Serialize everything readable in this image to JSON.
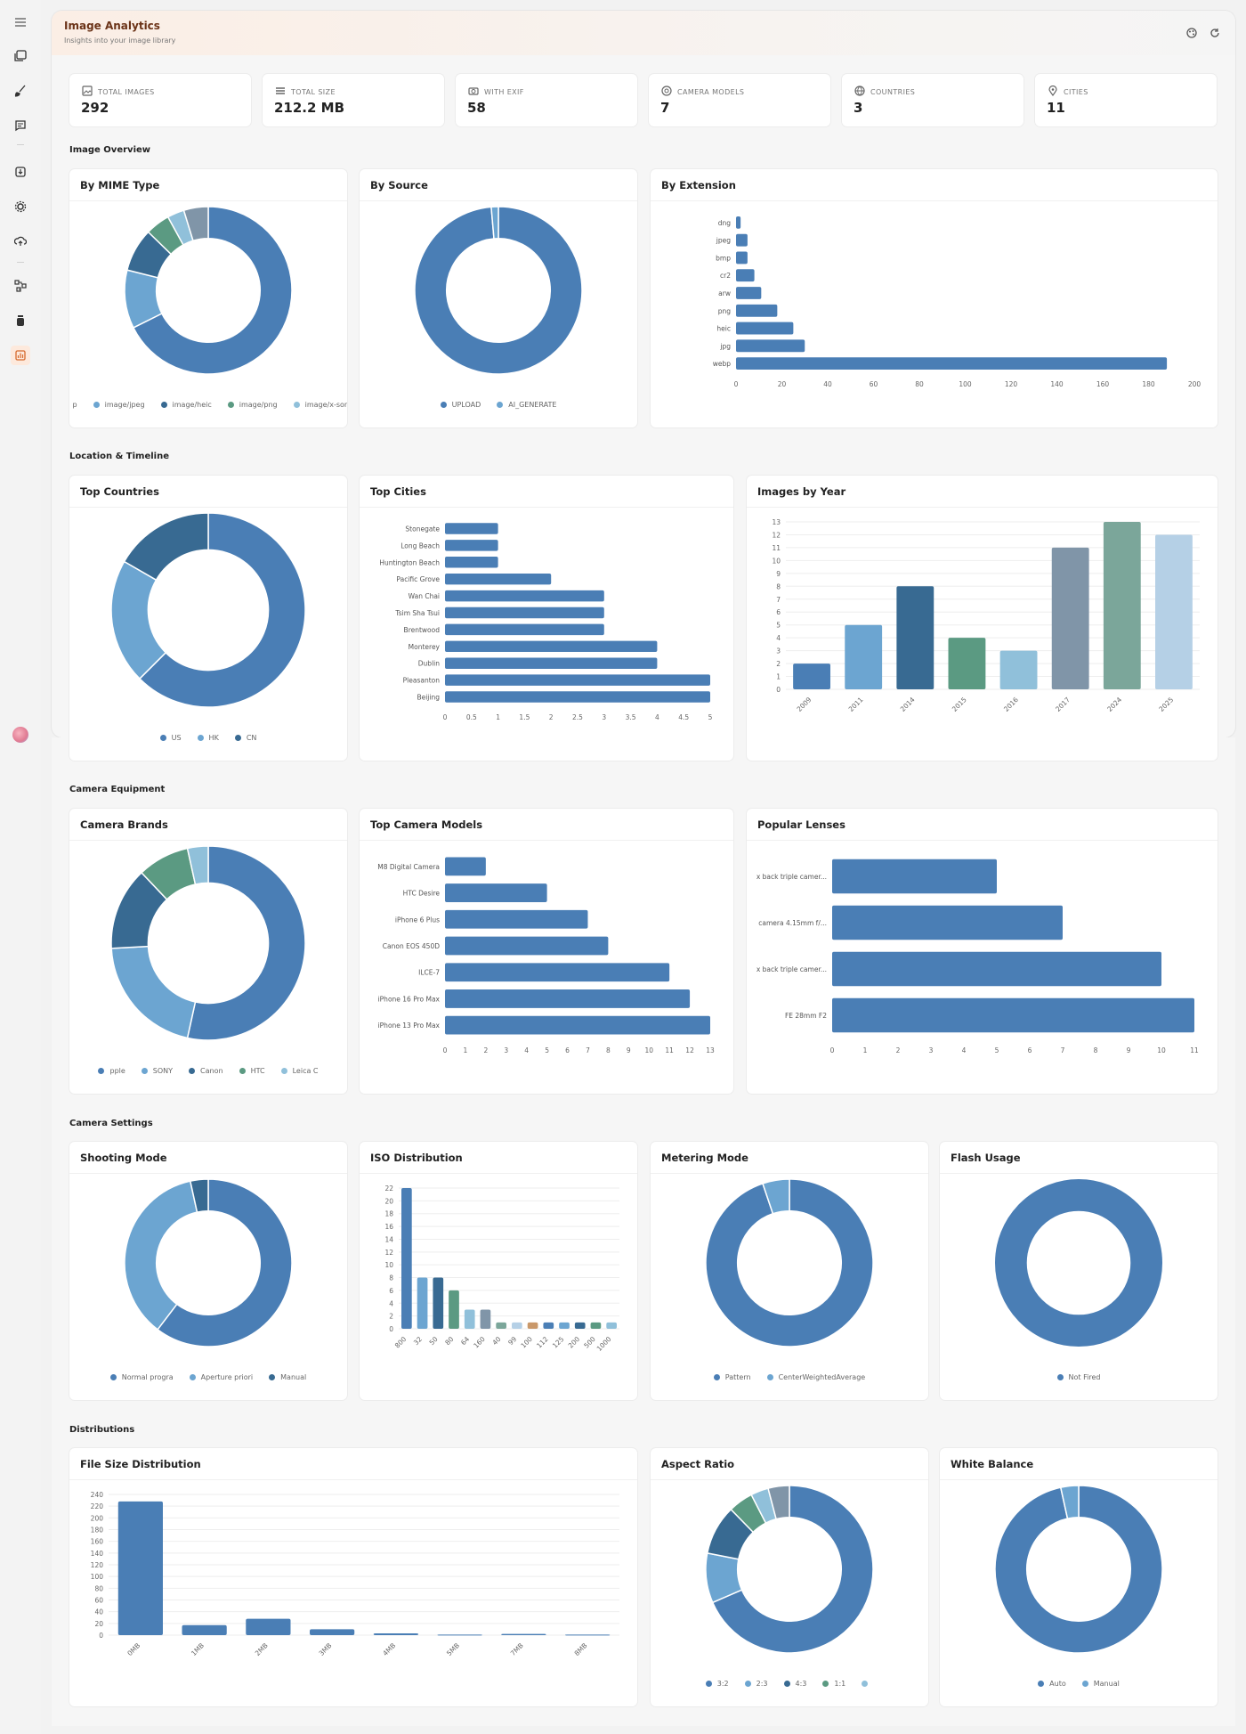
{
  "app": {
    "title": "Image Analytics",
    "subtitle": "Insights into your image library"
  },
  "header_icons": [
    "palette-icon",
    "refresh-icon"
  ],
  "sidebar": {
    "icons": [
      "menu-icon",
      "gallery-icon",
      "brush-icon",
      "chat-icon",
      "import-icon",
      "settings-gear-icon",
      "upload-cloud-icon",
      "workflow-icon",
      "jar-icon",
      "analytics-icon"
    ]
  },
  "colors": {
    "accent": "#d66a2c",
    "primary": "#4a7eb5",
    "palette": [
      "#4a7eb5",
      "#6ca5d1",
      "#386a92",
      "#5b9a82",
      "#90c0da",
      "#8095a8",
      "#7ba69a",
      "#b5d0e6",
      "#c9986a"
    ]
  },
  "stats": [
    {
      "label": "TOTAL IMAGES",
      "value": "292",
      "icon": "image-icon"
    },
    {
      "label": "TOTAL SIZE",
      "value": "212.2 MB",
      "icon": "storage-icon"
    },
    {
      "label": "WITH EXIF",
      "value": "58",
      "icon": "camera-icon"
    },
    {
      "label": "CAMERA MODELS",
      "value": "7",
      "icon": "aperture-icon"
    },
    {
      "label": "COUNTRIES",
      "value": "3",
      "icon": "globe-icon"
    },
    {
      "label": "CITIES",
      "value": "11",
      "icon": "pin-icon"
    }
  ],
  "sections": {
    "overview": "Image Overview",
    "location": "Location & Timeline",
    "camera": "Camera Equipment",
    "settings": "Camera Settings",
    "distributions": "Distributions"
  },
  "chart_data": [
    {
      "id": "mime",
      "type": "pie",
      "title": "By MIME Type",
      "legend": [
        "p",
        "image/jpeg",
        "image/heic",
        "image/png",
        "image/x-sony-"
      ],
      "values": [
        186,
        31,
        23,
        13,
        9,
        13
      ]
    },
    {
      "id": "source",
      "type": "pie",
      "title": "By Source",
      "legend": [
        "UPLOAD",
        "AI_GENERATE"
      ],
      "values": [
        288,
        4
      ]
    },
    {
      "id": "ext",
      "type": "bar",
      "orientation": "horizontal",
      "title": "By Extension",
      "categories": [
        "dng",
        "jpeg",
        "bmp",
        "cr2",
        "arw",
        "png",
        "heic",
        "jpg",
        "webp"
      ],
      "values": [
        2,
        5,
        5,
        8,
        11,
        18,
        25,
        30,
        188
      ],
      "xlim": [
        0,
        200
      ],
      "ticks": [
        0,
        20,
        40,
        60,
        80,
        100,
        120,
        140,
        160,
        180,
        200
      ]
    },
    {
      "id": "countries",
      "type": "pie",
      "title": "Top Countries",
      "legend": [
        "US",
        "HK",
        "CN"
      ],
      "values": [
        30,
        10,
        8
      ]
    },
    {
      "id": "cities",
      "type": "bar",
      "orientation": "horizontal",
      "title": "Top Cities",
      "categories": [
        "Stonegate",
        "Long Beach",
        "Huntington Beach",
        "Pacific Grove",
        "Wan Chai",
        "Tsim Sha Tsui",
        "Brentwood",
        "Monterey",
        "Dublin",
        "Pleasanton",
        "Beijing"
      ],
      "values": [
        1,
        1,
        1,
        2,
        3,
        3,
        3,
        4,
        4,
        5,
        5
      ],
      "xlim": [
        0,
        5
      ],
      "ticks": [
        "0",
        "0.5",
        "1",
        "1.5",
        "2",
        "2.5",
        "3",
        "3.5",
        "4",
        "4.5",
        "5"
      ]
    },
    {
      "id": "years",
      "type": "bar",
      "orientation": "vertical",
      "title": "Images by Year",
      "categories": [
        "2009",
        "2011",
        "2014",
        "2015",
        "2016",
        "2017",
        "2024",
        "2025"
      ],
      "values": [
        2,
        5,
        8,
        4,
        3,
        11,
        13,
        12
      ],
      "ylim": [
        0,
        13
      ],
      "ticks": [
        0,
        1,
        2,
        3,
        4,
        5,
        6,
        7,
        8,
        9,
        10,
        11,
        12,
        13
      ]
    },
    {
      "id": "brands",
      "type": "pie",
      "title": "Camera Brands",
      "legend": [
        "pple",
        "SONY",
        "Canon",
        "HTC",
        "Leica C"
      ],
      "values": [
        31,
        12,
        8,
        5,
        2
      ]
    },
    {
      "id": "models",
      "type": "bar",
      "orientation": "horizontal",
      "title": "Top Camera Models",
      "categories": [
        "M8 Digital Camera",
        "HTC Desire",
        "iPhone 6 Plus",
        "Canon EOS 450D",
        "ILCE-7",
        "iPhone 16 Pro Max",
        "iPhone 13 Pro Max"
      ],
      "values": [
        2,
        5,
        7,
        8,
        11,
        12,
        13
      ],
      "xlim": [
        0,
        13
      ],
      "ticks": [
        0,
        1,
        2,
        3,
        4,
        5,
        6,
        7,
        8,
        9,
        10,
        11,
        12,
        13
      ]
    },
    {
      "id": "lenses",
      "type": "bar",
      "orientation": "horizontal",
      "title": "Popular Lenses",
      "categories": [
        "x back triple camer...",
        "camera 4.15mm f/...",
        "x back triple camer...",
        "FE 28mm F2"
      ],
      "values": [
        5,
        7,
        10,
        11
      ],
      "xlim": [
        0,
        11
      ],
      "ticks": [
        0,
        1,
        2,
        3,
        4,
        5,
        6,
        7,
        8,
        9,
        10,
        11
      ]
    },
    {
      "id": "shooting",
      "type": "pie",
      "title": "Shooting Mode",
      "legend": [
        "Normal progra",
        "Aperture priori",
        "Manual"
      ],
      "values": [
        35,
        21,
        2
      ]
    },
    {
      "id": "iso",
      "type": "bar",
      "orientation": "vertical",
      "title": "ISO Distribution",
      "categories": [
        "800",
        "32",
        "50",
        "80",
        "64",
        "160",
        "40",
        "99",
        "100",
        "112",
        "125",
        "200",
        "500",
        "1000"
      ],
      "values": [
        22,
        8,
        8,
        6,
        3,
        3,
        1,
        1,
        1,
        1,
        1,
        1,
        1,
        1
      ],
      "ylim": [
        0,
        22
      ],
      "ticks": [
        0,
        2,
        4,
        6,
        8,
        10,
        12,
        14,
        16,
        18,
        20,
        22
      ]
    },
    {
      "id": "metering",
      "type": "pie",
      "title": "Metering Mode",
      "legend": [
        "Pattern",
        "CenterWeightedAverage"
      ],
      "values": [
        55,
        3
      ]
    },
    {
      "id": "flash",
      "type": "pie",
      "title": "Flash Usage",
      "legend": [
        "Not Fired"
      ],
      "values": [
        58
      ]
    },
    {
      "id": "filesize",
      "type": "bar",
      "orientation": "vertical",
      "title": "File Size Distribution",
      "categories": [
        "0MB",
        "1MB",
        "2MB",
        "3MB",
        "4MB",
        "5MB",
        "7MB",
        "8MB"
      ],
      "values": [
        228,
        17,
        28,
        10,
        3,
        1,
        2,
        1
      ],
      "ylim": [
        0,
        240
      ],
      "ticks": [
        0,
        20,
        40,
        60,
        80,
        100,
        120,
        140,
        160,
        180,
        200,
        220,
        240
      ]
    },
    {
      "id": "aspect",
      "type": "pie",
      "title": "Aspect Ratio",
      "legend": [
        "3:2",
        "2:3",
        "4:3",
        "1:1",
        ""
      ],
      "values": [
        200,
        28,
        28,
        14,
        10,
        12
      ]
    },
    {
      "id": "wb",
      "type": "pie",
      "title": "White Balance",
      "legend": [
        "Auto",
        "Manual"
      ],
      "values": [
        56,
        2
      ]
    }
  ]
}
